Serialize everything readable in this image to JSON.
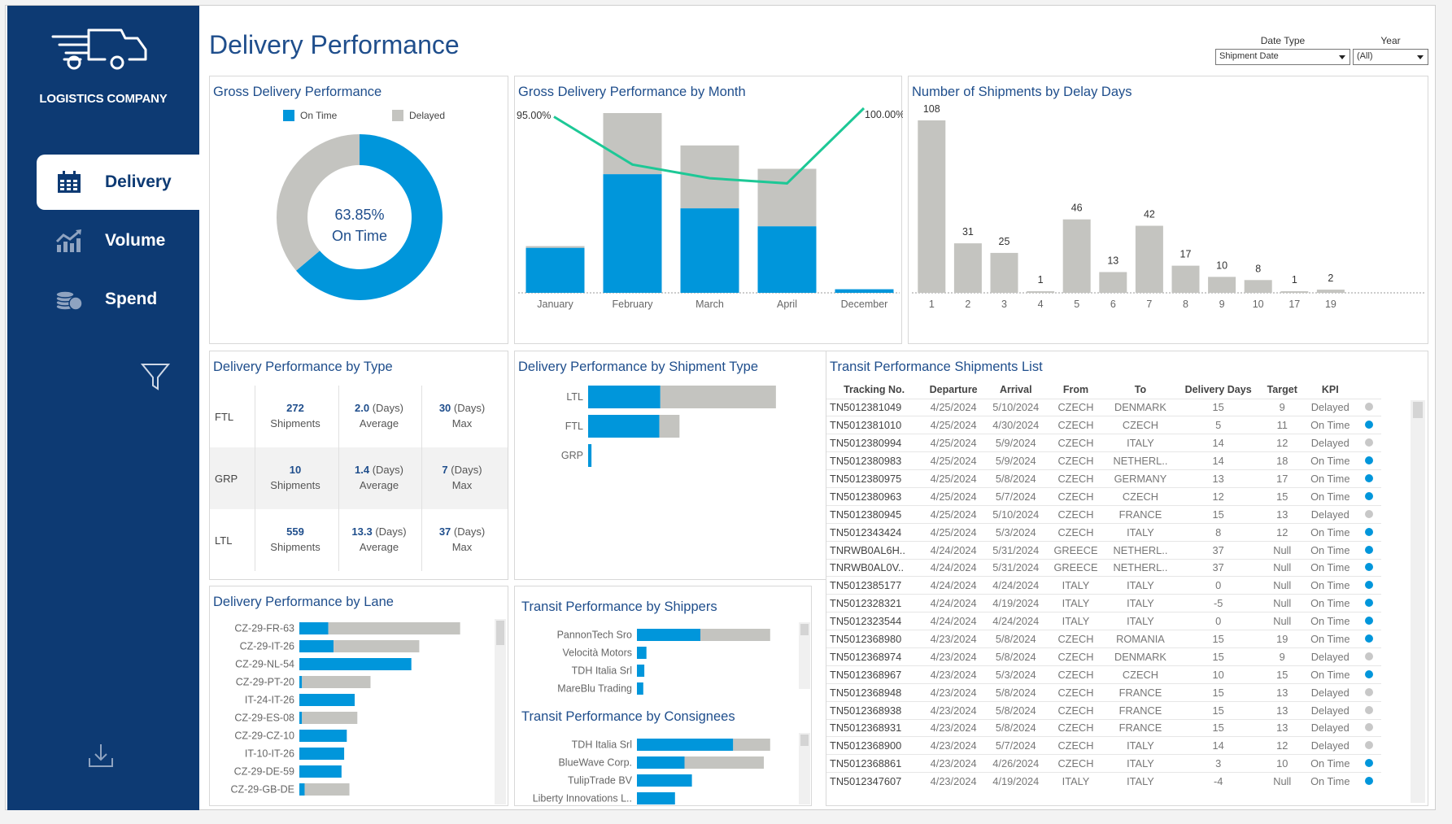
{
  "app": {
    "company": "LOGISTICS COMPANY",
    "page_title": "Delivery Performance"
  },
  "sidebar": {
    "items": [
      {
        "label": "Delivery",
        "icon": "calendar-icon",
        "active": true
      },
      {
        "label": "Volume",
        "icon": "chart-up-icon",
        "active": false
      },
      {
        "label": "Spend",
        "icon": "coins-icon",
        "active": false
      }
    ],
    "filter_icon": "filter-icon",
    "download_icon": "download-icon"
  },
  "filters": {
    "date_type": {
      "label": "Date Type",
      "value": "Shipment Date"
    },
    "year": {
      "label": "Year",
      "value": "(All)"
    }
  },
  "colors": {
    "on_time": "#0096db",
    "delayed": "#c4c4c0",
    "line": "#1dc896",
    "sidebar": "#0d3a73",
    "title": "#1f4e8c"
  },
  "gross": {
    "title": "Gross Delivery Performance",
    "legend_on_time": "On Time",
    "legend_delayed": "Delayed",
    "center_pct": "63.85%",
    "center_label": "On Time"
  },
  "chart_data": [
    {
      "type": "pie",
      "title": "Gross Delivery Performance",
      "categories": [
        "On Time",
        "Delayed"
      ],
      "values": [
        63.85,
        36.15
      ]
    },
    {
      "type": "bar",
      "title": "Gross Delivery Performance by Month",
      "categories": [
        "January",
        "February",
        "March",
        "April",
        "December"
      ],
      "series": [
        {
          "name": "On Time",
          "values": [
            25,
            66,
            47,
            37,
            2
          ]
        },
        {
          "name": "Delayed",
          "values": [
            1,
            34,
            35,
            32,
            0
          ]
        }
      ],
      "line": {
        "values": [
          95.0,
          67,
          59,
          56,
          100.0
        ],
        "labels": [
          "95.00%",
          "",
          "",
          "",
          "100.00%"
        ]
      }
    },
    {
      "type": "bar",
      "title": "Number of Shipments by Delay Days",
      "categories": [
        "1",
        "2",
        "3",
        "4",
        "5",
        "6",
        "7",
        "8",
        "9",
        "10",
        "17",
        "19"
      ],
      "values": [
        108,
        31,
        25,
        1,
        46,
        13,
        42,
        17,
        10,
        8,
        1,
        2
      ]
    },
    {
      "type": "bar",
      "title": "Delivery Performance by Shipment Type",
      "categories": [
        "LTL",
        "FTL",
        "GRP"
      ],
      "series": [
        {
          "name": "On Time",
          "values": [
            215,
            212,
            10
          ]
        },
        {
          "name": "Delayed",
          "values": [
            344,
            60,
            0
          ]
        }
      ]
    },
    {
      "type": "bar",
      "title": "Delivery Performance by Lane",
      "categories": [
        "CZ-29-FR-63",
        "CZ-29-IT-26",
        "CZ-29-NL-54",
        "CZ-29-PT-20",
        "IT-24-IT-26",
        "CZ-29-ES-08",
        "CZ-29-CZ-10",
        "IT-10-IT-26",
        "CZ-29-DE-59",
        "CZ-29-GB-DE"
      ],
      "series": [
        {
          "name": "On Time",
          "values": [
            22,
            26,
            85,
            2,
            42,
            2,
            36,
            34,
            32,
            4
          ]
        },
        {
          "name": "Delayed",
          "values": [
            100,
            65,
            0,
            52,
            0,
            42,
            0,
            0,
            0,
            34
          ]
        }
      ]
    },
    {
      "type": "bar",
      "title": "Transit Performance by Shippers",
      "categories": [
        "PannonTech Sro",
        "Velocità Motors",
        "TDH Italia Srl",
        "MareBlu Trading"
      ],
      "series": [
        {
          "name": "On Time",
          "values": [
            60,
            9,
            7,
            6
          ]
        },
        {
          "name": "Delayed",
          "values": [
            66,
            0,
            0,
            0
          ]
        }
      ]
    },
    {
      "type": "bar",
      "title": "Transit Performance by Consignees",
      "categories": [
        "TDH Italia Srl",
        "BlueWave Corp.",
        "TulipTrade BV",
        "Liberty Innovations L.."
      ],
      "series": [
        {
          "name": "On Time",
          "values": [
            91,
            45,
            52,
            36
          ]
        },
        {
          "name": "Delayed",
          "values": [
            35,
            75,
            0,
            0
          ]
        }
      ]
    }
  ],
  "month_chart": {
    "title": "Gross Delivery Performance by Month"
  },
  "delay_chart": {
    "title": "Number of Shipments by Delay Days"
  },
  "by_type": {
    "title": "Delivery Performance by Type",
    "rows": [
      {
        "type": "FTL",
        "count": "272",
        "count_label": "Shipments",
        "avg": "2.0",
        "avg_unit": "(Days)",
        "avg_label": "Average",
        "max": "30",
        "max_unit": "(Days)",
        "max_label": "Max"
      },
      {
        "type": "GRP",
        "count": "10",
        "count_label": "Shipments",
        "avg": "1.4",
        "avg_unit": "(Days)",
        "avg_label": "Average",
        "max": "7",
        "max_unit": "(Days)",
        "max_label": "Max"
      },
      {
        "type": "LTL",
        "count": "559",
        "count_label": "Shipments",
        "avg": "13.3",
        "avg_unit": "(Days)",
        "avg_label": "Average",
        "max": "37",
        "max_unit": "(Days)",
        "max_label": "Max"
      }
    ]
  },
  "shipment_type": {
    "title": "Delivery Performance by Shipment Type"
  },
  "lane": {
    "title": "Delivery Performance by Lane"
  },
  "shippers": {
    "title": "Transit Performance by Shippers"
  },
  "consignees": {
    "title": "Transit Performance by Consignees"
  },
  "shipments_list": {
    "title": "Transit Performance Shipments List",
    "columns": [
      "Tracking No.",
      "Departure",
      "Arrival",
      "From",
      "To",
      "Delivery Days",
      "Target",
      "KPI"
    ],
    "rows": [
      [
        "TN5012381049",
        "4/25/2024",
        "5/10/2024",
        "CZECH",
        "DENMARK",
        "15",
        "9",
        "Delayed"
      ],
      [
        "TN5012381010",
        "4/25/2024",
        "4/30/2024",
        "CZECH",
        "CZECH",
        "5",
        "11",
        "On Time"
      ],
      [
        "TN5012380994",
        "4/25/2024",
        "5/9/2024",
        "CZECH",
        "ITALY",
        "14",
        "12",
        "Delayed"
      ],
      [
        "TN5012380983",
        "4/25/2024",
        "5/9/2024",
        "CZECH",
        "NETHERL..",
        "14",
        "18",
        "On Time"
      ],
      [
        "TN5012380975",
        "4/25/2024",
        "5/8/2024",
        "CZECH",
        "GERMANY",
        "13",
        "17",
        "On Time"
      ],
      [
        "TN5012380963",
        "4/25/2024",
        "5/7/2024",
        "CZECH",
        "CZECH",
        "12",
        "15",
        "On Time"
      ],
      [
        "TN5012380945",
        "4/25/2024",
        "5/10/2024",
        "CZECH",
        "FRANCE",
        "15",
        "13",
        "Delayed"
      ],
      [
        "TN5012343424",
        "4/25/2024",
        "5/3/2024",
        "CZECH",
        "ITALY",
        "8",
        "12",
        "On Time"
      ],
      [
        "TNRWB0AL6H..",
        "4/24/2024",
        "5/31/2024",
        "GREECE",
        "NETHERL..",
        "37",
        "Null",
        "On Time"
      ],
      [
        "TNRWB0AL0V..",
        "4/24/2024",
        "5/31/2024",
        "GREECE",
        "NETHERL..",
        "37",
        "Null",
        "On Time"
      ],
      [
        "TN5012385177",
        "4/24/2024",
        "4/24/2024",
        "ITALY",
        "ITALY",
        "0",
        "Null",
        "On Time"
      ],
      [
        "TN5012328321",
        "4/24/2024",
        "4/19/2024",
        "ITALY",
        "ITALY",
        "-5",
        "Null",
        "On Time"
      ],
      [
        "TN5012323544",
        "4/24/2024",
        "4/24/2024",
        "ITALY",
        "ITALY",
        "0",
        "Null",
        "On Time"
      ],
      [
        "TN5012368980",
        "4/23/2024",
        "5/8/2024",
        "CZECH",
        "ROMANIA",
        "15",
        "19",
        "On Time"
      ],
      [
        "TN5012368974",
        "4/23/2024",
        "5/8/2024",
        "CZECH",
        "DENMARK",
        "15",
        "9",
        "Delayed"
      ],
      [
        "TN5012368967",
        "4/23/2024",
        "5/3/2024",
        "CZECH",
        "CZECH",
        "10",
        "15",
        "On Time"
      ],
      [
        "TN5012368948",
        "4/23/2024",
        "5/8/2024",
        "CZECH",
        "FRANCE",
        "15",
        "13",
        "Delayed"
      ],
      [
        "TN5012368938",
        "4/23/2024",
        "5/8/2024",
        "CZECH",
        "FRANCE",
        "15",
        "13",
        "Delayed"
      ],
      [
        "TN5012368931",
        "4/23/2024",
        "5/8/2024",
        "CZECH",
        "FRANCE",
        "15",
        "13",
        "Delayed"
      ],
      [
        "TN5012368900",
        "4/23/2024",
        "5/7/2024",
        "CZECH",
        "ITALY",
        "14",
        "12",
        "Delayed"
      ],
      [
        "TN5012368861",
        "4/23/2024",
        "4/26/2024",
        "CZECH",
        "ITALY",
        "3",
        "10",
        "On Time"
      ],
      [
        "TN5012347607",
        "4/23/2024",
        "4/19/2024",
        "ITALY",
        "ITALY",
        "-4",
        "Null",
        "On Time"
      ]
    ]
  }
}
